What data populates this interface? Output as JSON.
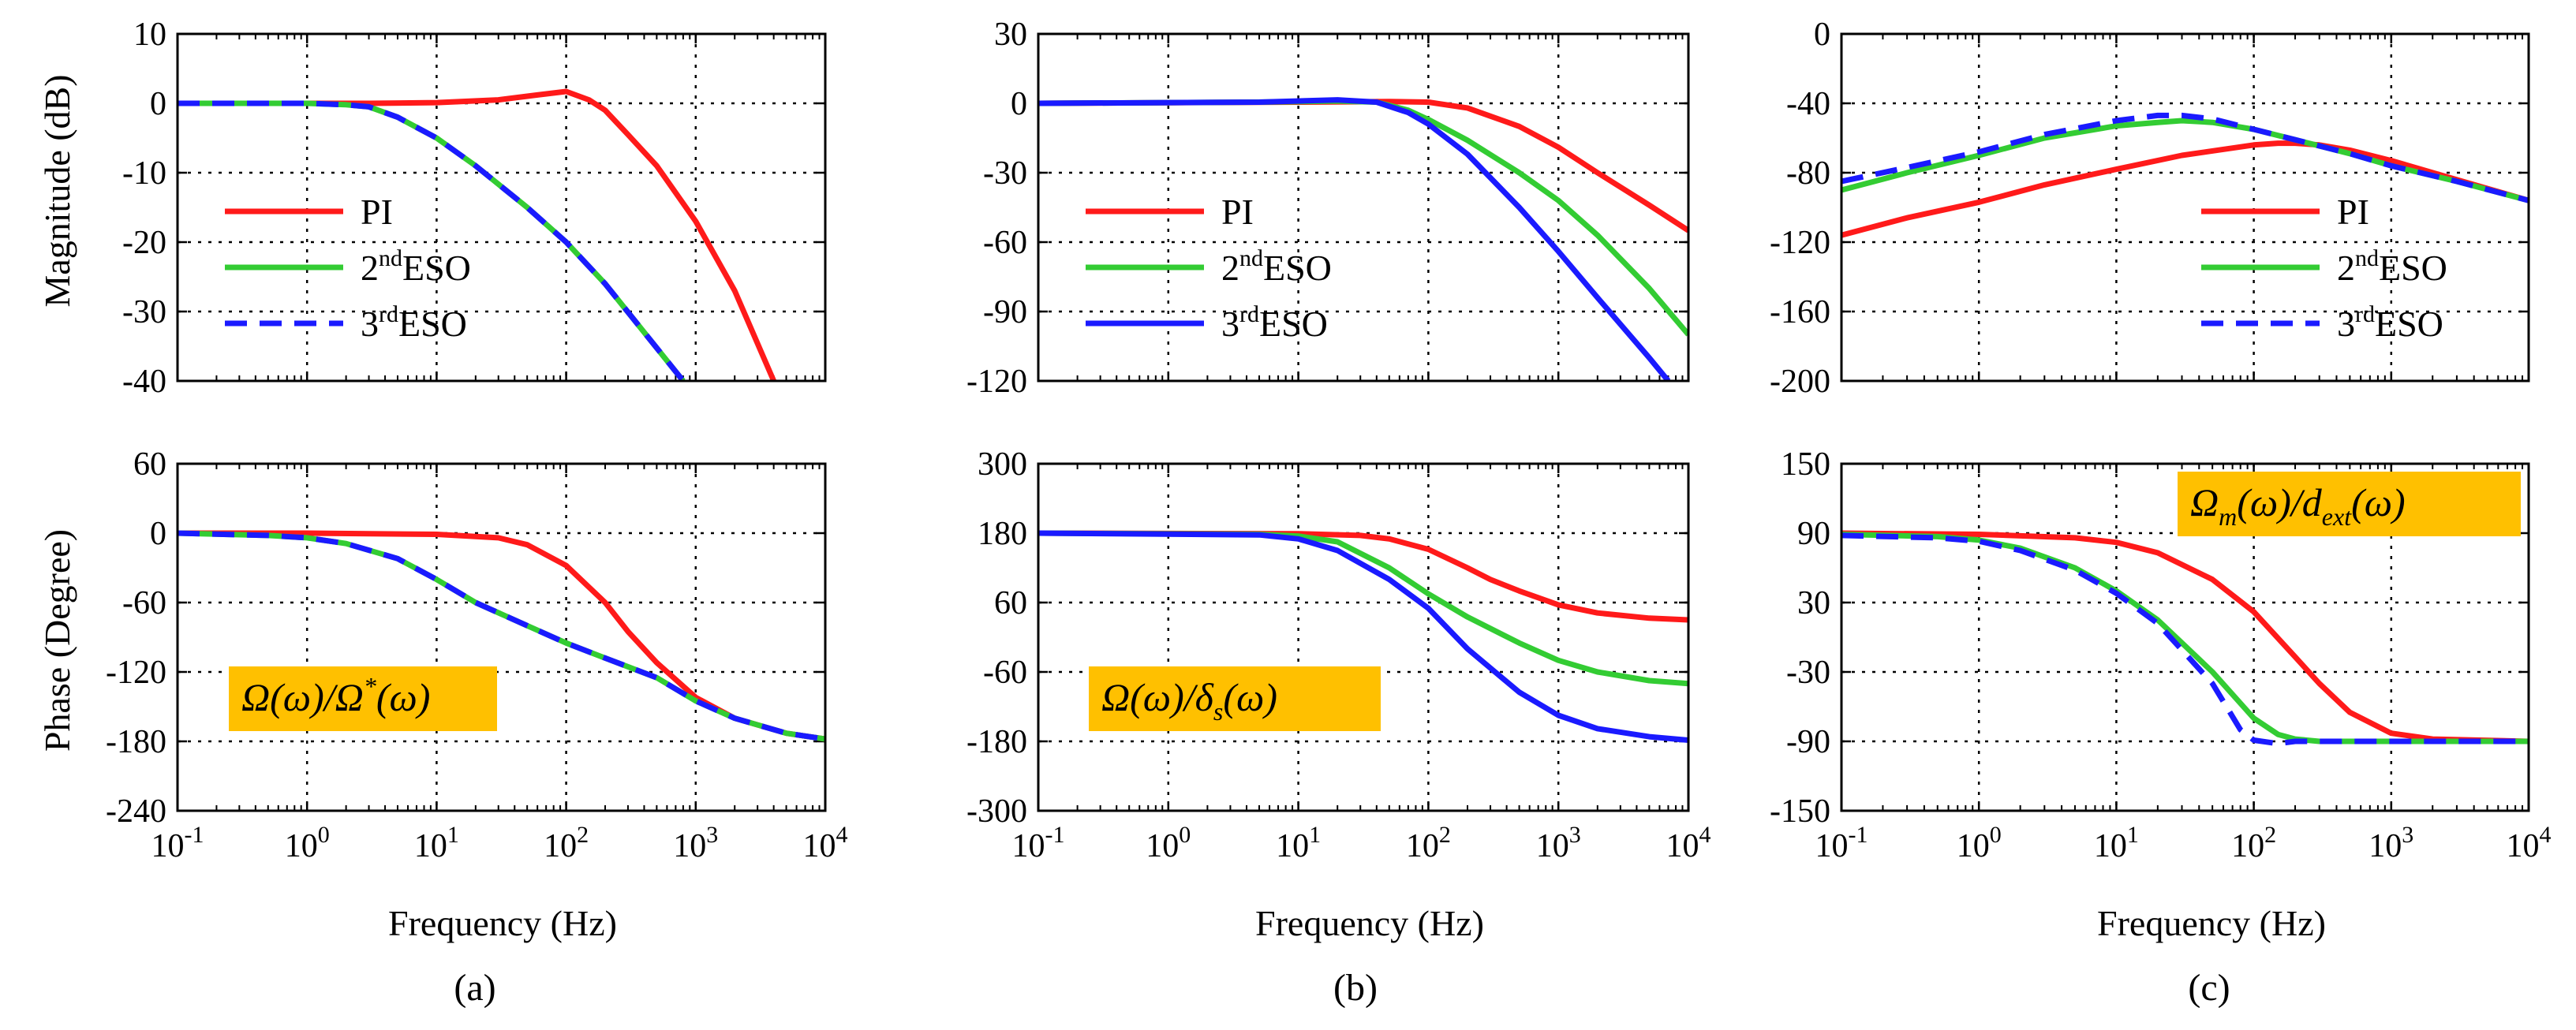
{
  "figure": {
    "captions": [
      "(a)",
      "(b)",
      "(c)"
    ],
    "xlabel": "Frequency (Hz)",
    "ylabel_top": "Magnitude (dB)",
    "ylabel_bottom": "Phase (Degree)",
    "colors": {
      "PI": "#ff1a1a",
      "ESO2": "#33cc33",
      "ESO3": "#1a1aff"
    }
  },
  "chart_data": [
    {
      "id": "a-mag",
      "type": "line",
      "xscale": "log",
      "xlim": [
        0.1,
        10000
      ],
      "ylim": [
        -40,
        10
      ],
      "yticks": [
        10,
        0,
        -10,
        -20,
        -30,
        -40
      ],
      "xlabel": "",
      "ylabel": "Magnitude (dB)",
      "grid": true,
      "legend": "center-left",
      "series": [
        {
          "name": "PI",
          "x": [
            0.1,
            1,
            3,
            10,
            30,
            60,
            100,
            150,
            200,
            300,
            500,
            1000,
            2000,
            4000
          ],
          "y": [
            0,
            0,
            0,
            0.1,
            0.5,
            1.2,
            1.7,
            0.5,
            -1,
            -4.5,
            -9,
            -17,
            -27,
            -40
          ]
        },
        {
          "name": "2ndESO",
          "x": [
            0.1,
            1,
            2,
            3,
            5,
            10,
            20,
            50,
            100,
            200,
            400,
            800
          ],
          "y": [
            0,
            0,
            -0.2,
            -0.5,
            -2,
            -5,
            -9,
            -15,
            -20,
            -26,
            -33,
            -40
          ]
        },
        {
          "name": "3rdESO",
          "x": [
            0.1,
            1,
            2,
            3,
            5,
            10,
            20,
            50,
            100,
            200,
            400,
            800
          ],
          "y": [
            0,
            0,
            -0.2,
            -0.5,
            -2,
            -5,
            -9,
            -15,
            -20,
            -26,
            -33,
            -40
          ]
        }
      ],
      "legend_items": [
        {
          "base": "PI",
          "sup": "",
          "rest": ""
        },
        {
          "base": "2",
          "sup": "nd",
          "rest": "ESO"
        },
        {
          "base": "3",
          "sup": "rd",
          "rest": "ESO"
        }
      ]
    },
    {
      "id": "b-mag",
      "type": "line",
      "xscale": "log",
      "xlim": [
        0.1,
        10000
      ],
      "ylim": [
        -120,
        30
      ],
      "yticks": [
        30,
        0,
        -30,
        -60,
        -90,
        -120
      ],
      "xlabel": "",
      "ylabel": "",
      "grid": true,
      "legend": "center-left",
      "series": [
        {
          "name": "PI",
          "x": [
            0.1,
            10,
            50,
            100,
            200,
            500,
            1000,
            2000,
            5000,
            10000
          ],
          "y": [
            0,
            0.5,
            0.8,
            0.5,
            -2,
            -10,
            -19,
            -30,
            -44,
            -55
          ]
        },
        {
          "name": "2ndESO",
          "x": [
            0.1,
            5,
            20,
            40,
            70,
            100,
            200,
            500,
            1000,
            2000,
            5000,
            10000
          ],
          "y": [
            0,
            0.5,
            1,
            0.5,
            -3,
            -7,
            -16,
            -30,
            -42,
            -57,
            -80,
            -100
          ]
        },
        {
          "name": "3rdESO",
          "x": [
            0.1,
            5,
            20,
            40,
            70,
            100,
            200,
            500,
            1000,
            2000,
            5000,
            7000
          ],
          "y": [
            0,
            0.5,
            1.5,
            0.5,
            -4,
            -9,
            -22,
            -45,
            -64,
            -84,
            -110,
            -120
          ]
        }
      ],
      "legend_items": [
        {
          "base": "PI",
          "sup": "",
          "rest": ""
        },
        {
          "base": "2",
          "sup": "nd",
          "rest": "ESO"
        },
        {
          "base": "3",
          "sup": "rd",
          "rest": "ESO"
        }
      ]
    },
    {
      "id": "c-mag",
      "type": "line",
      "xscale": "log",
      "xlim": [
        0.1,
        10000
      ],
      "ylim": [
        -200,
        0
      ],
      "yticks": [
        0,
        -40,
        -80,
        -120,
        -160,
        -200
      ],
      "xlabel": "",
      "ylabel": "",
      "grid": true,
      "legend": "center-right",
      "series": [
        {
          "name": "PI",
          "x": [
            0.1,
            0.3,
            1,
            3,
            10,
            30,
            100,
            150,
            200,
            300,
            500,
            1000,
            3000,
            10000
          ],
          "y": [
            -116,
            -106,
            -97,
            -87,
            -78,
            -70,
            -64,
            -63,
            -63,
            -64,
            -67,
            -73,
            -84,
            -96
          ]
        },
        {
          "name": "2ndESO",
          "x": [
            0.1,
            0.3,
            1,
            3,
            10,
            20,
            30,
            50,
            100,
            200,
            500,
            1000,
            3000,
            10000
          ],
          "y": [
            -90,
            -80,
            -70,
            -60,
            -53,
            -51,
            -50,
            -51,
            -55,
            -61,
            -69,
            -76,
            -85,
            -96
          ]
        },
        {
          "name": "3rdESO",
          "x": [
            0.1,
            0.3,
            1,
            3,
            10,
            20,
            30,
            50,
            100,
            200,
            500,
            1000,
            3000,
            10000
          ],
          "y": [
            -85,
            -77,
            -68,
            -58,
            -50,
            -47,
            -47,
            -49,
            -55,
            -61,
            -69,
            -76,
            -85,
            -96
          ]
        }
      ],
      "legend_items": [
        {
          "base": "PI",
          "sup": "",
          "rest": ""
        },
        {
          "base": "2",
          "sup": "nd",
          "rest": "ESO"
        },
        {
          "base": "3",
          "sup": "rd",
          "rest": "ESO"
        }
      ]
    },
    {
      "id": "a-phase",
      "type": "line",
      "xscale": "log",
      "xlim": [
        0.1,
        10000
      ],
      "ylim": [
        -240,
        60
      ],
      "yticks": [
        60,
        0,
        -60,
        -120,
        -180,
        -240
      ],
      "xlabel": "Frequency (Hz)",
      "ylabel": "Phase (Degree)",
      "grid": true,
      "annotation": {
        "main": "Ω(ω)/Ω",
        "sup": "*",
        "tail": "(ω)"
      },
      "series": [
        {
          "name": "PI",
          "x": [
            0.1,
            1,
            10,
            30,
            50,
            100,
            200,
            300,
            500,
            1000,
            2000,
            5000,
            10000
          ],
          "y": [
            0,
            0,
            -1,
            -4,
            -10,
            -28,
            -60,
            -85,
            -112,
            -142,
            -160,
            -173,
            -178
          ]
        },
        {
          "name": "2ndESO",
          "x": [
            0.1,
            0.5,
            1,
            2,
            5,
            10,
            20,
            50,
            100,
            200,
            500,
            1000,
            2000,
            5000,
            10000
          ],
          "y": [
            0,
            -2,
            -4,
            -9,
            -22,
            -40,
            -60,
            -80,
            -95,
            -108,
            -125,
            -145,
            -160,
            -173,
            -178
          ]
        },
        {
          "name": "3rdESO",
          "x": [
            0.1,
            0.5,
            1,
            2,
            5,
            10,
            20,
            50,
            100,
            200,
            500,
            1000,
            2000,
            5000,
            10000
          ],
          "y": [
            0,
            -2,
            -4,
            -9,
            -22,
            -40,
            -60,
            -80,
            -95,
            -108,
            -125,
            -145,
            -160,
            -173,
            -178
          ]
        }
      ]
    },
    {
      "id": "b-phase",
      "type": "line",
      "xscale": "log",
      "xlim": [
        0.1,
        10000
      ],
      "ylim": [
        -300,
        300
      ],
      "yticks": [
        300,
        180,
        60,
        -60,
        -180,
        -300
      ],
      "xlabel": "Frequency (Hz)",
      "ylabel": "",
      "grid": true,
      "annotation": {
        "main": "Ω(ω)/δ",
        "sub": "s",
        "tail": "(ω)"
      },
      "series": [
        {
          "name": "PI",
          "x": [
            0.1,
            10,
            30,
            50,
            100,
            200,
            300,
            500,
            1000,
            2000,
            5000,
            10000
          ],
          "y": [
            180,
            179,
            176,
            170,
            152,
            120,
            100,
            80,
            56,
            42,
            33,
            30
          ]
        },
        {
          "name": "2ndESO",
          "x": [
            0.1,
            5,
            10,
            20,
            50,
            100,
            200,
            500,
            1000,
            2000,
            5000,
            10000
          ],
          "y": [
            180,
            178,
            175,
            165,
            120,
            75,
            35,
            -10,
            -40,
            -60,
            -75,
            -80
          ]
        },
        {
          "name": "3rdESO",
          "x": [
            0.1,
            5,
            10,
            20,
            50,
            100,
            200,
            500,
            1000,
            2000,
            5000,
            10000
          ],
          "y": [
            180,
            177,
            170,
            150,
            100,
            50,
            -20,
            -95,
            -135,
            -158,
            -172,
            -178
          ]
        }
      ]
    },
    {
      "id": "c-phase",
      "type": "line",
      "xscale": "log",
      "xlim": [
        0.1,
        10000
      ],
      "ylim": [
        -150,
        150
      ],
      "yticks": [
        150,
        90,
        30,
        -30,
        -90,
        -150
      ],
      "xlabel": "Frequency (Hz)",
      "ylabel": "",
      "grid": true,
      "annotation": {
        "main": "Ω",
        "sub": "m",
        "tail": "(ω)/d",
        "sub2": "ext",
        "tail2": "(ω)"
      },
      "series": [
        {
          "name": "PI",
          "x": [
            0.1,
            1,
            5,
            10,
            20,
            50,
            100,
            200,
            300,
            500,
            1000,
            2000,
            10000
          ],
          "y": [
            90,
            89,
            86,
            82,
            73,
            50,
            22,
            -17,
            -40,
            -65,
            -83,
            -88,
            -90
          ]
        },
        {
          "name": "2ndESO",
          "x": [
            0.1,
            0.5,
            1,
            2,
            5,
            10,
            20,
            50,
            100,
            150,
            200,
            300,
            500,
            1000,
            10000
          ],
          "y": [
            89,
            87,
            84,
            77,
            60,
            40,
            15,
            -30,
            -70,
            -84,
            -88,
            -90,
            -90,
            -90,
            -90
          ]
        },
        {
          "name": "3rdESO",
          "x": [
            0.1,
            0.5,
            1,
            2,
            5,
            10,
            20,
            50,
            80,
            100,
            150,
            200,
            1000,
            10000
          ],
          "y": [
            88,
            86,
            83,
            75,
            58,
            38,
            12,
            -40,
            -80,
            -89,
            -92,
            -90,
            -90,
            -90
          ]
        }
      ]
    }
  ]
}
